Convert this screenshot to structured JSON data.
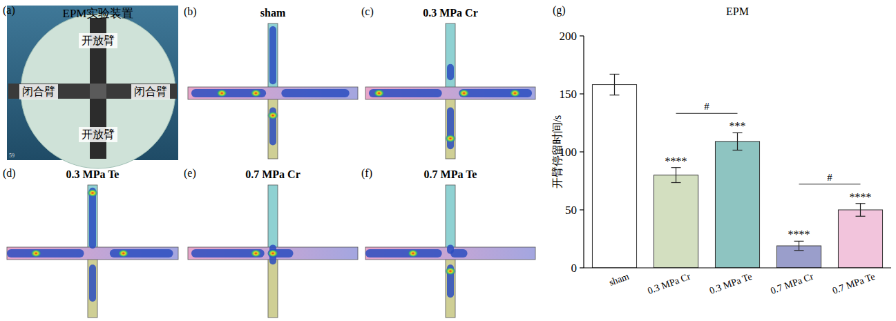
{
  "apparatus": {
    "letter": "(a)",
    "title": "EPM实验装置",
    "arm_labels": [
      "开放臂",
      "闭合臂",
      "闭合臂",
      "开放臂"
    ],
    "frame_number": "59"
  },
  "heatmaps": [
    {
      "letter": "(b)",
      "title": "sham"
    },
    {
      "letter": "(c)",
      "title": "0.3 MPa Cr"
    },
    {
      "letter": "(d)",
      "title": "0.3 MPa Te"
    },
    {
      "letter": "(e)",
      "title": "0.7 MPa Cr"
    },
    {
      "letter": "(f)",
      "title": "0.7 MPa Te"
    }
  ],
  "chart_data": {
    "letter": "(g)",
    "type": "bar",
    "title": "EPM",
    "y_label": "开臂停留时间/s",
    "categories": [
      "sham",
      "0.3 MPa Cr",
      "0.3 MPa Te",
      "0.7 MPa Cr",
      "0.7 MPa Te"
    ],
    "values": [
      158,
      80,
      109,
      19,
      50
    ],
    "errors": [
      9,
      6.5,
      7.5,
      4,
      5.5
    ],
    "colors": [
      "#ffffff",
      "#d3dfc0",
      "#8ec4c1",
      "#9a9ecb",
      "#f2c4dc"
    ],
    "ylim": [
      0,
      200
    ],
    "yticks": [
      0,
      50,
      100,
      150,
      200
    ],
    "annotations": [
      {
        "text": "****",
        "category": 1
      },
      {
        "text": "***",
        "category": 2
      },
      {
        "text": "****",
        "category": 3
      },
      {
        "text": "****",
        "category": 4
      }
    ],
    "comparisons": [
      {
        "text": "#",
        "categories": [
          1,
          2
        ]
      },
      {
        "text": "#",
        "categories": [
          3,
          4
        ]
      }
    ]
  }
}
